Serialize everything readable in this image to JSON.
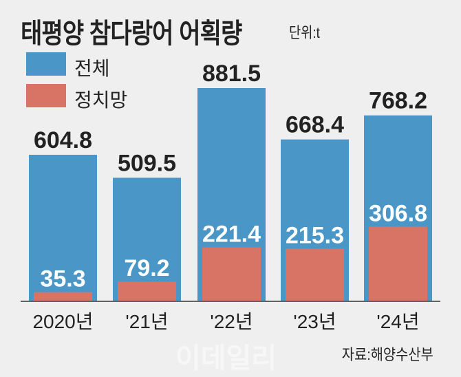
{
  "chart_data": {
    "type": "bar",
    "title": "태평양 참다랑어 어획량",
    "unit": "단위:t",
    "categories": [
      "2020년",
      "'21년",
      "'22년",
      "'23년",
      "'24년"
    ],
    "series": [
      {
        "name": "전체",
        "color": "#4a96c6",
        "values": [
          604.8,
          509.5,
          881.5,
          668.4,
          768.2
        ],
        "labels": [
          "604.8",
          "509.5",
          "881.5",
          "668.4",
          "768.2"
        ]
      },
      {
        "name": "정치망",
        "color": "#d87465",
        "values": [
          35.3,
          79.2,
          221.4,
          215.3,
          306.8
        ],
        "labels": [
          "35.3",
          "79.2",
          "221.4",
          "215.3",
          "306.8"
        ]
      }
    ],
    "ylim": [
      0,
      900
    ],
    "legend": "top-left",
    "source": "자료:해양수산부",
    "watermark": "이데일리"
  }
}
